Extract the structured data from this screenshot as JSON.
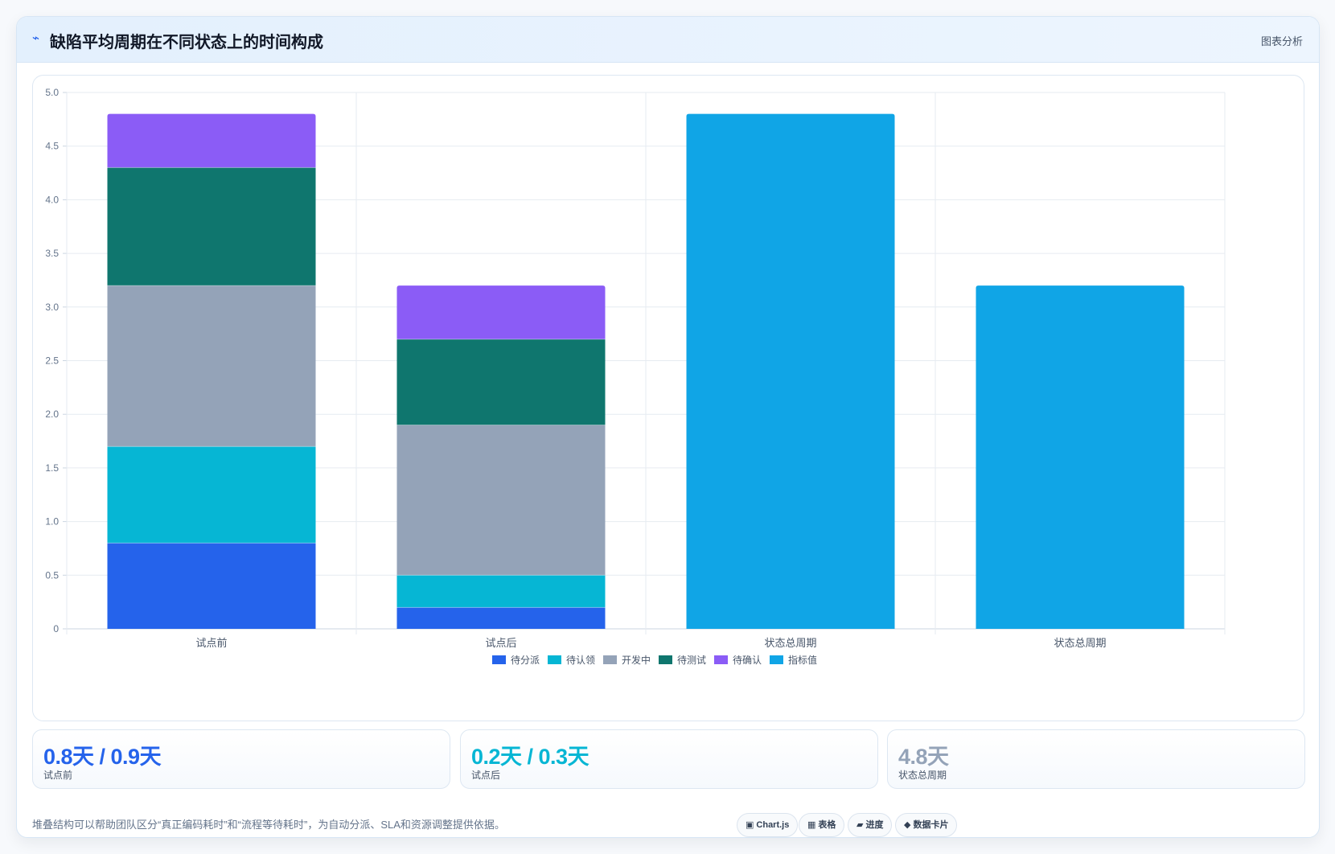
{
  "header": {
    "icon": "lightning-icon",
    "title": "缺陷平均周期在不同状态上的时间构成",
    "tag": "图表分析"
  },
  "chart_data": {
    "type": "bar",
    "stacked": true,
    "categories": [
      "试点前",
      "试点后",
      "状态总周期",
      "状态总周期"
    ],
    "ylim": [
      0,
      5
    ],
    "yticks": [
      "0",
      "0.5",
      "1.0",
      "1.5",
      "2.0",
      "2.5",
      "3.0",
      "3.5",
      "4.0",
      "4.5",
      "5.0"
    ],
    "grid": true,
    "legend_position": "bottom",
    "series": [
      {
        "name": "待分派",
        "color": "#2563eb",
        "values": [
          0.8,
          0.2,
          0,
          0
        ]
      },
      {
        "name": "待认领",
        "color": "#06b6d4",
        "values": [
          0.9,
          0.3,
          0,
          0
        ]
      },
      {
        "name": "开发中",
        "color": "#94a3b8",
        "values": [
          1.5,
          1.4,
          0,
          0
        ]
      },
      {
        "name": "待测试",
        "color": "#0f766e",
        "values": [
          1.1,
          0.8,
          0,
          0
        ]
      },
      {
        "name": "待确认",
        "color": "#8b5cf6",
        "values": [
          0.5,
          0.5,
          0,
          0
        ]
      },
      {
        "name": "指标值",
        "color": "#10a5e6",
        "values": [
          0,
          0,
          4.8,
          3.2
        ]
      }
    ]
  },
  "kpis": [
    {
      "value": "0.8天 / 0.9天",
      "label": "试点前",
      "color": "#2563eb"
    },
    {
      "value": "0.2天 / 0.3天",
      "label": "试点后",
      "color": "#06b6d4"
    },
    {
      "value": "4.8天",
      "label": "状态总周期",
      "color": "#94a3b8"
    }
  ],
  "footnote": "堆叠结构可以帮助团队区分“真正编码耗时”和“流程等待耗时”，为自动分派、SLA和资源调整提供依据。",
  "chips": [
    {
      "icon": "▣",
      "icon_name": "chart-icon",
      "label": "Chart.js"
    },
    {
      "icon": "▦",
      "icon_name": "table-icon",
      "label": "表格"
    },
    {
      "icon": "▰",
      "icon_name": "progress-icon",
      "label": "进度"
    },
    {
      "icon": "◆",
      "icon_name": "card-icon",
      "label": "数据卡片"
    }
  ]
}
